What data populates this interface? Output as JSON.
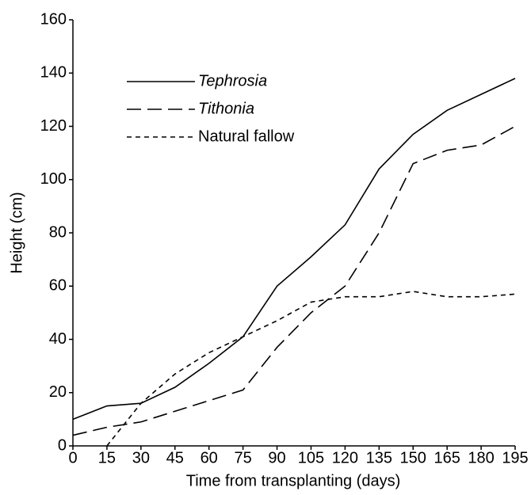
{
  "chart_data": {
    "type": "line",
    "x_label": "Time from transplanting (days)",
    "y_label": "Height (cm)",
    "x": [
      0,
      15,
      30,
      45,
      60,
      75,
      90,
      105,
      120,
      135,
      150,
      165,
      180,
      195
    ],
    "xlim": [
      0,
      195
    ],
    "xticks": [
      0,
      15,
      30,
      45,
      60,
      75,
      90,
      105,
      120,
      135,
      150,
      165,
      180,
      195
    ],
    "ylim": [
      0,
      160
    ],
    "yticks": [
      0,
      20,
      40,
      60,
      80,
      100,
      120,
      140,
      160
    ],
    "legend": "upper left",
    "series": [
      {
        "name": "Tephrosia",
        "color": "#000000",
        "dash": "solid",
        "italic": true,
        "values": [
          10,
          15,
          16,
          22,
          31,
          41,
          60,
          71,
          83,
          104,
          117,
          126,
          132,
          138
        ]
      },
      {
        "name": "Tithonia",
        "color": "#000000",
        "dash": "dashed",
        "italic": true,
        "values": [
          4,
          7,
          9,
          13,
          17,
          21,
          37,
          50,
          60,
          80,
          106,
          111,
          113,
          120
        ]
      },
      {
        "name": "Natural fallow",
        "color": "#000000",
        "dash": "dotted",
        "italic": false,
        "values": [
          null,
          0,
          16,
          27,
          35,
          41,
          47,
          54,
          56,
          56,
          58,
          56,
          56,
          57
        ]
      }
    ]
  }
}
